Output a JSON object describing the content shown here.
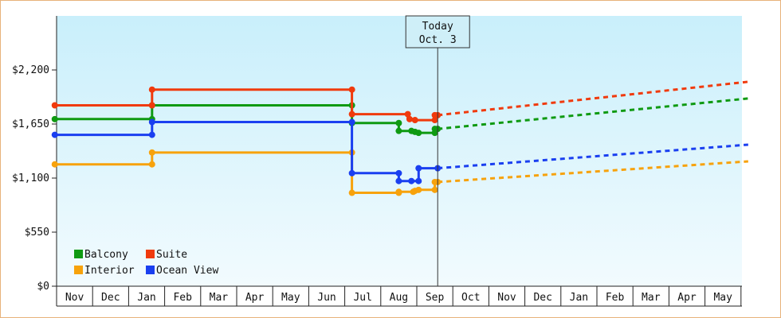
{
  "chart_data": {
    "type": "line",
    "title": "",
    "xlabel": "",
    "ylabel": "",
    "ylim": [
      0,
      2750
    ],
    "y_ticks": [
      {
        "value": 0,
        "label": "$0"
      },
      {
        "value": 550,
        "label": "$550"
      },
      {
        "value": 1100,
        "label": "$1,100"
      },
      {
        "value": 1650,
        "label": "$1,650"
      },
      {
        "value": 2200,
        "label": "$2,200"
      }
    ],
    "x_months": [
      "Nov",
      "Dec",
      "Jan",
      "Feb",
      "Mar",
      "Apr",
      "May",
      "Jun",
      "Jul",
      "Aug",
      "Sep",
      "Oct",
      "Nov",
      "Dec",
      "Jan",
      "Feb",
      "Mar",
      "Apr",
      "May"
    ],
    "today": {
      "line1": "Today",
      "line2": "Oct. 3",
      "x": 10.58
    },
    "background": {
      "top": "#c9effb",
      "bottom": "#f2fbfe"
    },
    "legend": {
      "placement": "bottom-left"
    },
    "series": [
      {
        "name": "Balcony",
        "color": "#0f9a12",
        "points": [
          [
            -0.05,
            1700
          ],
          [
            2.65,
            1700
          ],
          [
            2.65,
            1840
          ],
          [
            8.2,
            1840
          ],
          [
            8.2,
            1660
          ],
          [
            9.5,
            1660
          ],
          [
            9.5,
            1580
          ],
          [
            9.85,
            1580
          ],
          [
            9.85,
            1560
          ],
          [
            10.05,
            1560
          ],
          [
            10.05,
            1560
          ],
          [
            10.5,
            1560
          ],
          [
            10.5,
            1600
          ],
          [
            10.58,
            1600
          ]
        ],
        "marker_points": [
          [
            -0.05,
            1700
          ],
          [
            2.65,
            1700
          ],
          [
            2.65,
            1840
          ],
          [
            8.2,
            1840
          ],
          [
            8.2,
            1660
          ],
          [
            9.5,
            1660
          ],
          [
            9.5,
            1580
          ],
          [
            9.85,
            1580
          ],
          [
            9.95,
            1570
          ],
          [
            10.05,
            1560
          ],
          [
            10.5,
            1560
          ],
          [
            10.5,
            1600
          ],
          [
            10.58,
            1600
          ]
        ],
        "projection": [
          [
            10.58,
            1600
          ],
          [
            19.2,
            1910
          ]
        ]
      },
      {
        "name": "Suite",
        "color": "#f03a0d",
        "points": [
          [
            -0.05,
            1840
          ],
          [
            2.65,
            1840
          ],
          [
            2.65,
            2000
          ],
          [
            8.2,
            2000
          ],
          [
            8.2,
            1750
          ],
          [
            9.75,
            1750
          ],
          [
            9.75,
            1700
          ],
          [
            9.95,
            1700
          ],
          [
            9.95,
            1690
          ],
          [
            10.5,
            1690
          ],
          [
            10.5,
            1740
          ],
          [
            10.58,
            1740
          ]
        ],
        "marker_points": [
          [
            -0.05,
            1840
          ],
          [
            2.65,
            1840
          ],
          [
            2.65,
            2000
          ],
          [
            8.2,
            2000
          ],
          [
            8.2,
            1750
          ],
          [
            9.75,
            1750
          ],
          [
            9.8,
            1700
          ],
          [
            9.95,
            1690
          ],
          [
            10.5,
            1690
          ],
          [
            10.5,
            1740
          ],
          [
            10.58,
            1740
          ]
        ],
        "projection": [
          [
            10.58,
            1740
          ],
          [
            19.2,
            2080
          ]
        ]
      },
      {
        "name": "Interior",
        "color": "#f7a20c",
        "points": [
          [
            -0.05,
            1240
          ],
          [
            2.65,
            1240
          ],
          [
            2.65,
            1360
          ],
          [
            8.2,
            1360
          ],
          [
            8.2,
            950
          ],
          [
            9.5,
            950
          ],
          [
            9.5,
            960
          ],
          [
            9.9,
            960
          ],
          [
            9.9,
            980
          ],
          [
            10.5,
            980
          ],
          [
            10.5,
            1060
          ],
          [
            10.58,
            1060
          ]
        ],
        "marker_points": [
          [
            -0.05,
            1240
          ],
          [
            2.65,
            1240
          ],
          [
            2.65,
            1360
          ],
          [
            8.2,
            1360
          ],
          [
            8.2,
            950
          ],
          [
            9.5,
            950
          ],
          [
            9.5,
            960
          ],
          [
            9.9,
            960
          ],
          [
            9.95,
            970
          ],
          [
            10.05,
            980
          ],
          [
            10.5,
            980
          ],
          [
            10.5,
            1060
          ],
          [
            10.58,
            1060
          ]
        ],
        "projection": [
          [
            10.58,
            1060
          ],
          [
            19.2,
            1270
          ]
        ]
      },
      {
        "name": "Ocean View",
        "color": "#1a3ff0",
        "points": [
          [
            -0.05,
            1540
          ],
          [
            2.65,
            1540
          ],
          [
            2.65,
            1670
          ],
          [
            8.2,
            1670
          ],
          [
            8.2,
            1150
          ],
          [
            9.5,
            1150
          ],
          [
            9.5,
            1070
          ],
          [
            10.05,
            1070
          ],
          [
            10.05,
            1200
          ],
          [
            10.58,
            1200
          ]
        ],
        "marker_points": [
          [
            -0.05,
            1540
          ],
          [
            2.65,
            1540
          ],
          [
            2.65,
            1670
          ],
          [
            8.2,
            1670
          ],
          [
            8.2,
            1150
          ],
          [
            9.5,
            1150
          ],
          [
            9.5,
            1070
          ],
          [
            9.85,
            1070
          ],
          [
            10.05,
            1070
          ],
          [
            10.05,
            1200
          ],
          [
            10.58,
            1200
          ]
        ],
        "projection": [
          [
            10.58,
            1200
          ],
          [
            19.2,
            1440
          ]
        ]
      }
    ]
  }
}
